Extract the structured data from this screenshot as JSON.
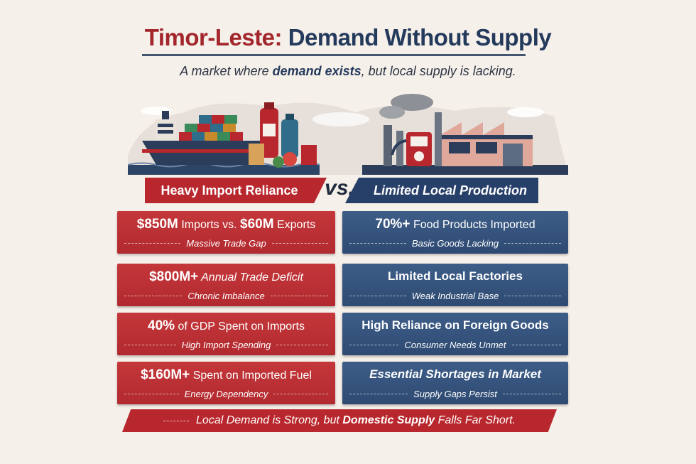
{
  "title": {
    "part1": "Timor-Leste:",
    "part2": "Demand Without Supply"
  },
  "subtitle": {
    "before": "A market where ",
    "emph": "demand exists",
    "after": ", but local supply is lacking."
  },
  "banners": {
    "left": "Heavy Import Reliance",
    "vs": "vs.",
    "right": "Limited Local Production"
  },
  "left_cards": [
    {
      "big1": "$850M",
      "mid": " Imports vs. ",
      "big2": "$60M",
      "end": " Exports",
      "sub": "Massive Trade Gap"
    },
    {
      "big1": "$800M+",
      "mid": " Annual Trade Deficit",
      "sub": "Chronic Imbalance"
    },
    {
      "big1": "40%",
      "mid": " of GDP Spent on Imports",
      "sub": "High Import Spending"
    },
    {
      "big1": "$160M+",
      "mid": " Spent on Imported Fuel",
      "sub": "Energy Dependency"
    }
  ],
  "right_cards": [
    {
      "big1": "70%+",
      "mid": " Food Products Imported",
      "sub": "Basic Goods Lacking"
    },
    {
      "text": "Limited Local Factories",
      "sub": "Weak Industrial Base"
    },
    {
      "text": "High Reliance on Foreign Goods",
      "sub": "Consumer Needs Unmet"
    },
    {
      "text": "Essential Shortages in Market",
      "sub": "Supply Gaps Persist"
    }
  ],
  "footer": {
    "before": "Local Demand is Strong, but ",
    "emph": "Domestic Supply",
    "after": " Falls Far Short."
  },
  "colors": {
    "red": "#b8272d",
    "navy": "#27406a",
    "background": "#f6f0ea"
  },
  "icons": [
    "cargo-ship-icon",
    "shipping-containers-icon",
    "food-bottles-icon",
    "fuel-pump-icon",
    "factory-icon",
    "smokestack-icon"
  ]
}
